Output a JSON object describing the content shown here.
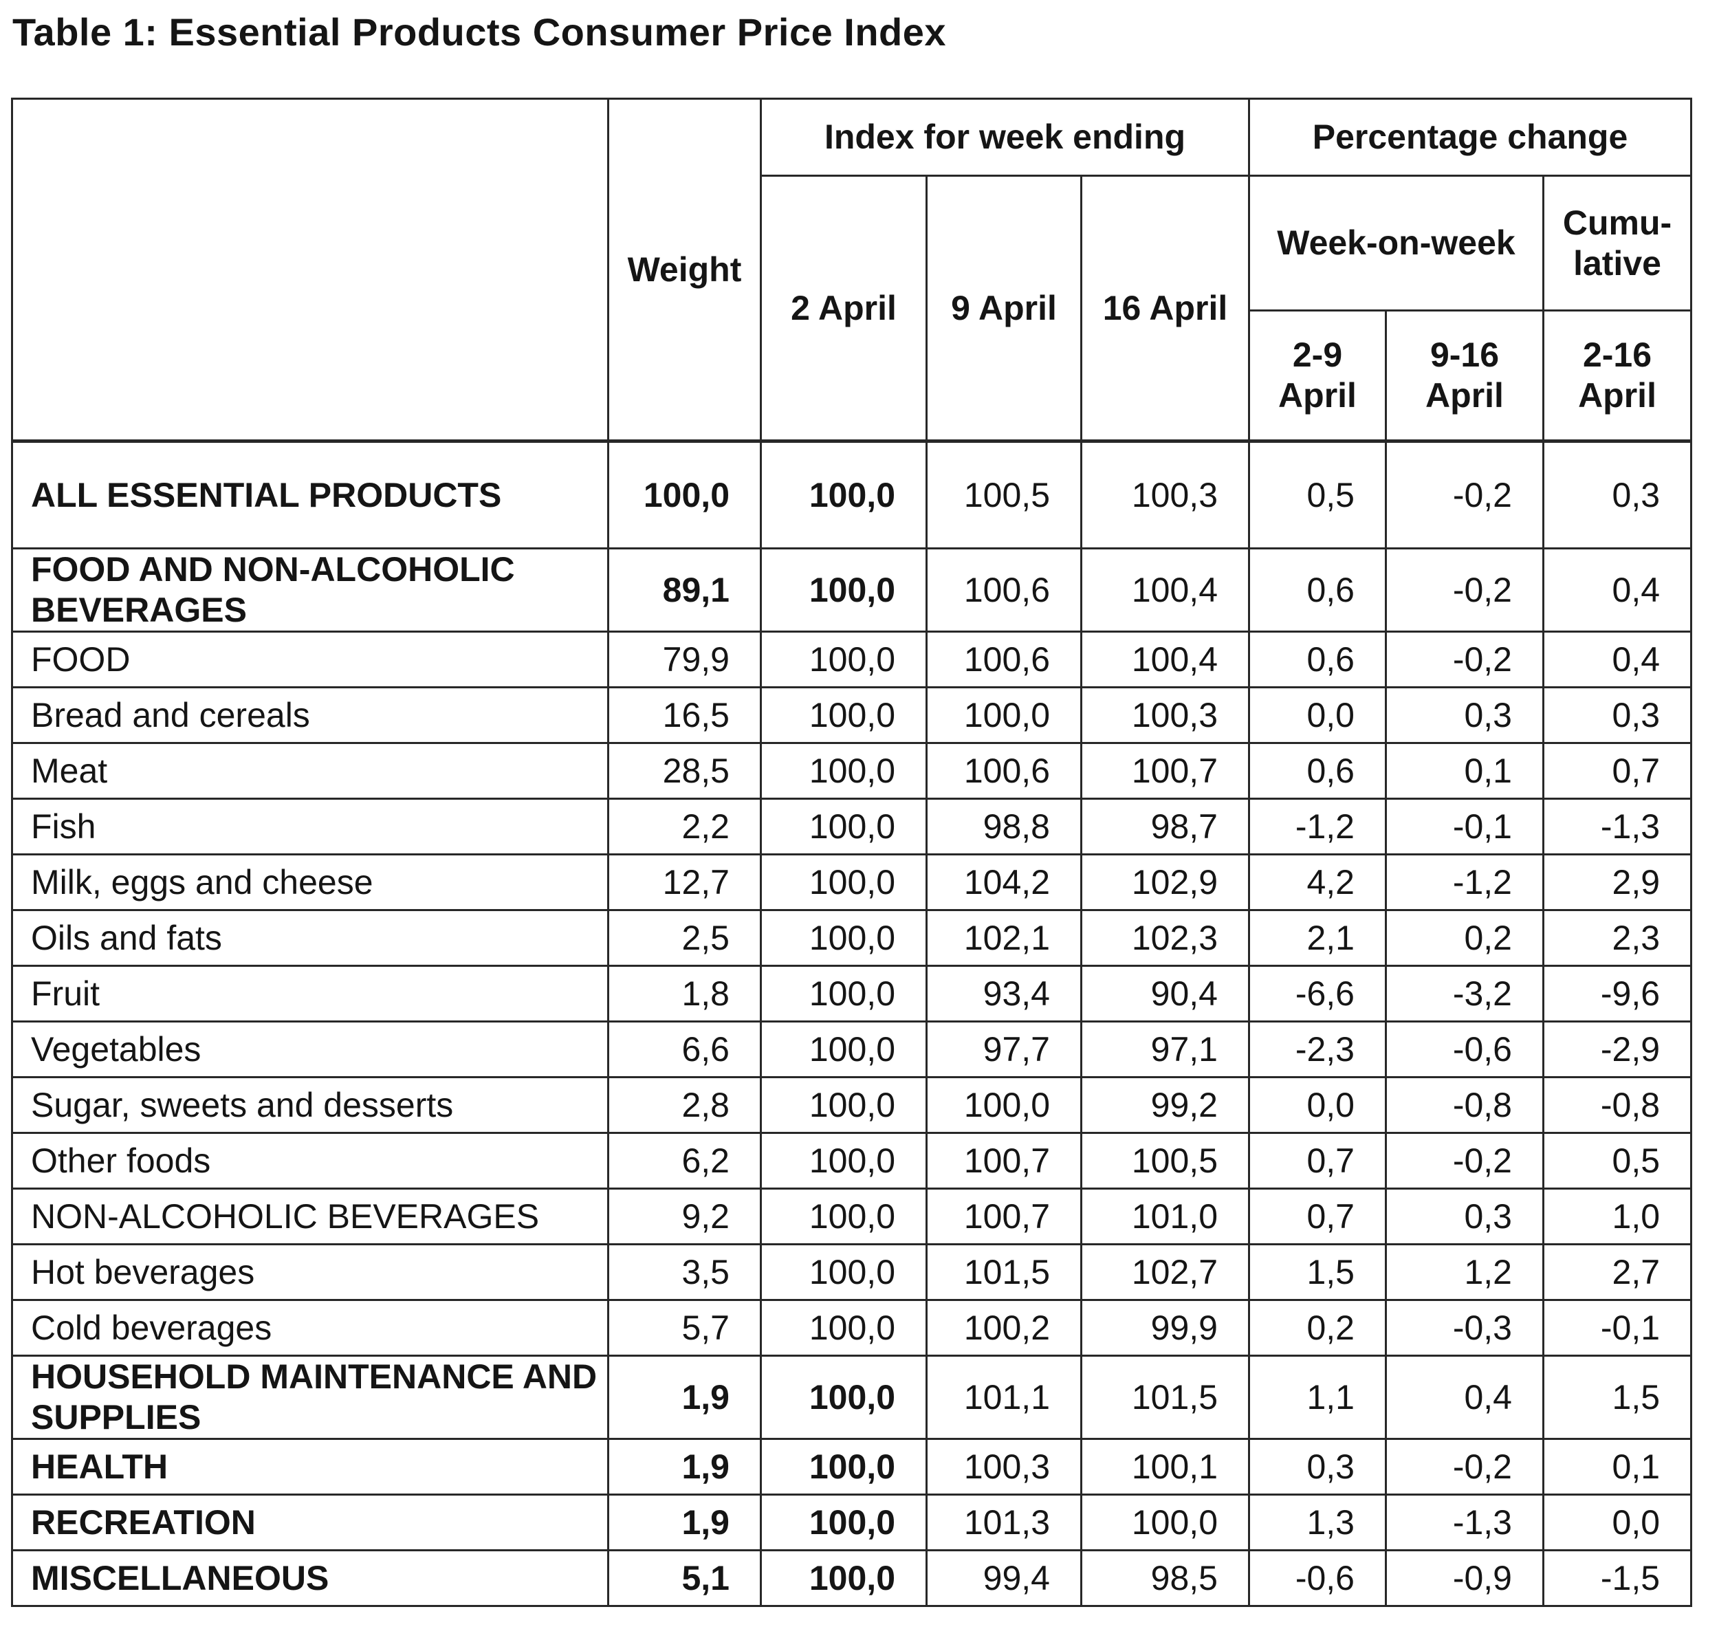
{
  "title": "Table 1: Essential Products Consumer Price Index",
  "colors": {
    "background": "#ffffff",
    "text": "#151515",
    "border": "#282828"
  },
  "table": {
    "header": {
      "weight": "Weight",
      "index_group": "Index for week ending",
      "pct_group": "Percentage change",
      "index_cols": [
        "2 April",
        "9 April",
        "16 April"
      ],
      "wow": "Week-on-week",
      "cumulative": "Cumu-\nlative",
      "pct_cols": [
        "2-9\nApril",
        "9-16\nApril",
        "2-16\nApril"
      ]
    },
    "rows": [
      {
        "label": "ALL ESSENTIAL PRODUCTS",
        "bold": true,
        "size": "xl",
        "weight": "100,0",
        "apr2": "100,0",
        "apr9": "100,5",
        "apr16": "100,3",
        "chg_2_9": "0,5",
        "chg_9_16": "-0,2",
        "chg_2_16": "0,3"
      },
      {
        "label": "FOOD AND NON-ALCOHOLIC BEVERAGES",
        "bold": true,
        "size": "lg",
        "weight": "89,1",
        "apr2": "100,0",
        "apr9": "100,6",
        "apr16": "100,4",
        "chg_2_9": "0,6",
        "chg_9_16": "-0,2",
        "chg_2_16": "0,4"
      },
      {
        "label": "FOOD",
        "bold": false,
        "size": "md",
        "weight": "79,9",
        "apr2": "100,0",
        "apr9": "100,6",
        "apr16": "100,4",
        "chg_2_9": "0,6",
        "chg_9_16": "-0,2",
        "chg_2_16": "0,4"
      },
      {
        "label": "Bread and cereals",
        "bold": false,
        "size": "md",
        "weight": "16,5",
        "apr2": "100,0",
        "apr9": "100,0",
        "apr16": "100,3",
        "chg_2_9": "0,0",
        "chg_9_16": "0,3",
        "chg_2_16": "0,3"
      },
      {
        "label": "Meat",
        "bold": false,
        "size": "md",
        "weight": "28,5",
        "apr2": "100,0",
        "apr9": "100,6",
        "apr16": "100,7",
        "chg_2_9": "0,6",
        "chg_9_16": "0,1",
        "chg_2_16": "0,7"
      },
      {
        "label": "Fish",
        "bold": false,
        "size": "md",
        "weight": "2,2",
        "apr2": "100,0",
        "apr9": "98,8",
        "apr16": "98,7",
        "chg_2_9": "-1,2",
        "chg_9_16": "-0,1",
        "chg_2_16": "-1,3"
      },
      {
        "label": "Milk, eggs and cheese",
        "bold": false,
        "size": "md",
        "weight": "12,7",
        "apr2": "100,0",
        "apr9": "104,2",
        "apr16": "102,9",
        "chg_2_9": "4,2",
        "chg_9_16": "-1,2",
        "chg_2_16": "2,9"
      },
      {
        "label": "Oils and fats",
        "bold": false,
        "size": "md",
        "weight": "2,5",
        "apr2": "100,0",
        "apr9": "102,1",
        "apr16": "102,3",
        "chg_2_9": "2,1",
        "chg_9_16": "0,2",
        "chg_2_16": "2,3"
      },
      {
        "label": "Fruit",
        "bold": false,
        "size": "md",
        "weight": "1,8",
        "apr2": "100,0",
        "apr9": "93,4",
        "apr16": "90,4",
        "chg_2_9": "-6,6",
        "chg_9_16": "-3,2",
        "chg_2_16": "-9,6"
      },
      {
        "label": "Vegetables",
        "bold": false,
        "size": "md",
        "weight": "6,6",
        "apr2": "100,0",
        "apr9": "97,7",
        "apr16": "97,1",
        "chg_2_9": "-2,3",
        "chg_9_16": "-0,6",
        "chg_2_16": "-2,9"
      },
      {
        "label": "Sugar, sweets and desserts",
        "bold": false,
        "size": "md",
        "weight": "2,8",
        "apr2": "100,0",
        "apr9": "100,0",
        "apr16": "99,2",
        "chg_2_9": "0,0",
        "chg_9_16": "-0,8",
        "chg_2_16": "-0,8"
      },
      {
        "label": "Other foods",
        "bold": false,
        "size": "md",
        "weight": "6,2",
        "apr2": "100,0",
        "apr9": "100,7",
        "apr16": "100,5",
        "chg_2_9": "0,7",
        "chg_9_16": "-0,2",
        "chg_2_16": "0,5"
      },
      {
        "label": "NON-ALCOHOLIC BEVERAGES",
        "bold": false,
        "size": "md",
        "weight": "9,2",
        "apr2": "100,0",
        "apr9": "100,7",
        "apr16": "101,0",
        "chg_2_9": "0,7",
        "chg_9_16": "0,3",
        "chg_2_16": "1,0"
      },
      {
        "label": "Hot beverages",
        "bold": false,
        "size": "md",
        "weight": "3,5",
        "apr2": "100,0",
        "apr9": "101,5",
        "apr16": "102,7",
        "chg_2_9": "1,5",
        "chg_9_16": "1,2",
        "chg_2_16": "2,7"
      },
      {
        "label": "Cold beverages",
        "bold": false,
        "size": "md",
        "weight": "5,7",
        "apr2": "100,0",
        "apr9": "100,2",
        "apr16": "99,9",
        "chg_2_9": "0,2",
        "chg_9_16": "-0,3",
        "chg_2_16": "-0,1"
      },
      {
        "label": "HOUSEHOLD MAINTENANCE AND SUPPLIES",
        "bold": true,
        "size": "lg",
        "weight": "1,9",
        "apr2": "100,0",
        "apr9": "101,1",
        "apr16": "101,5",
        "chg_2_9": "1,1",
        "chg_9_16": "0,4",
        "chg_2_16": "1,5"
      },
      {
        "label": "HEALTH",
        "bold": true,
        "size": "md",
        "weight": "1,9",
        "apr2": "100,0",
        "apr9": "100,3",
        "apr16": "100,1",
        "chg_2_9": "0,3",
        "chg_9_16": "-0,2",
        "chg_2_16": "0,1"
      },
      {
        "label": "RECREATION",
        "bold": true,
        "size": "md",
        "weight": "1,9",
        "apr2": "100,0",
        "apr9": "101,3",
        "apr16": "100,0",
        "chg_2_9": "1,3",
        "chg_9_16": "-1,3",
        "chg_2_16": "0,0"
      },
      {
        "label": "MISCELLANEOUS",
        "bold": true,
        "size": "md",
        "weight": "5,1",
        "apr2": "100,0",
        "apr9": "99,4",
        "apr16": "98,5",
        "chg_2_9": "-0,6",
        "chg_9_16": "-0,9",
        "chg_2_16": "-1,5"
      }
    ]
  }
}
